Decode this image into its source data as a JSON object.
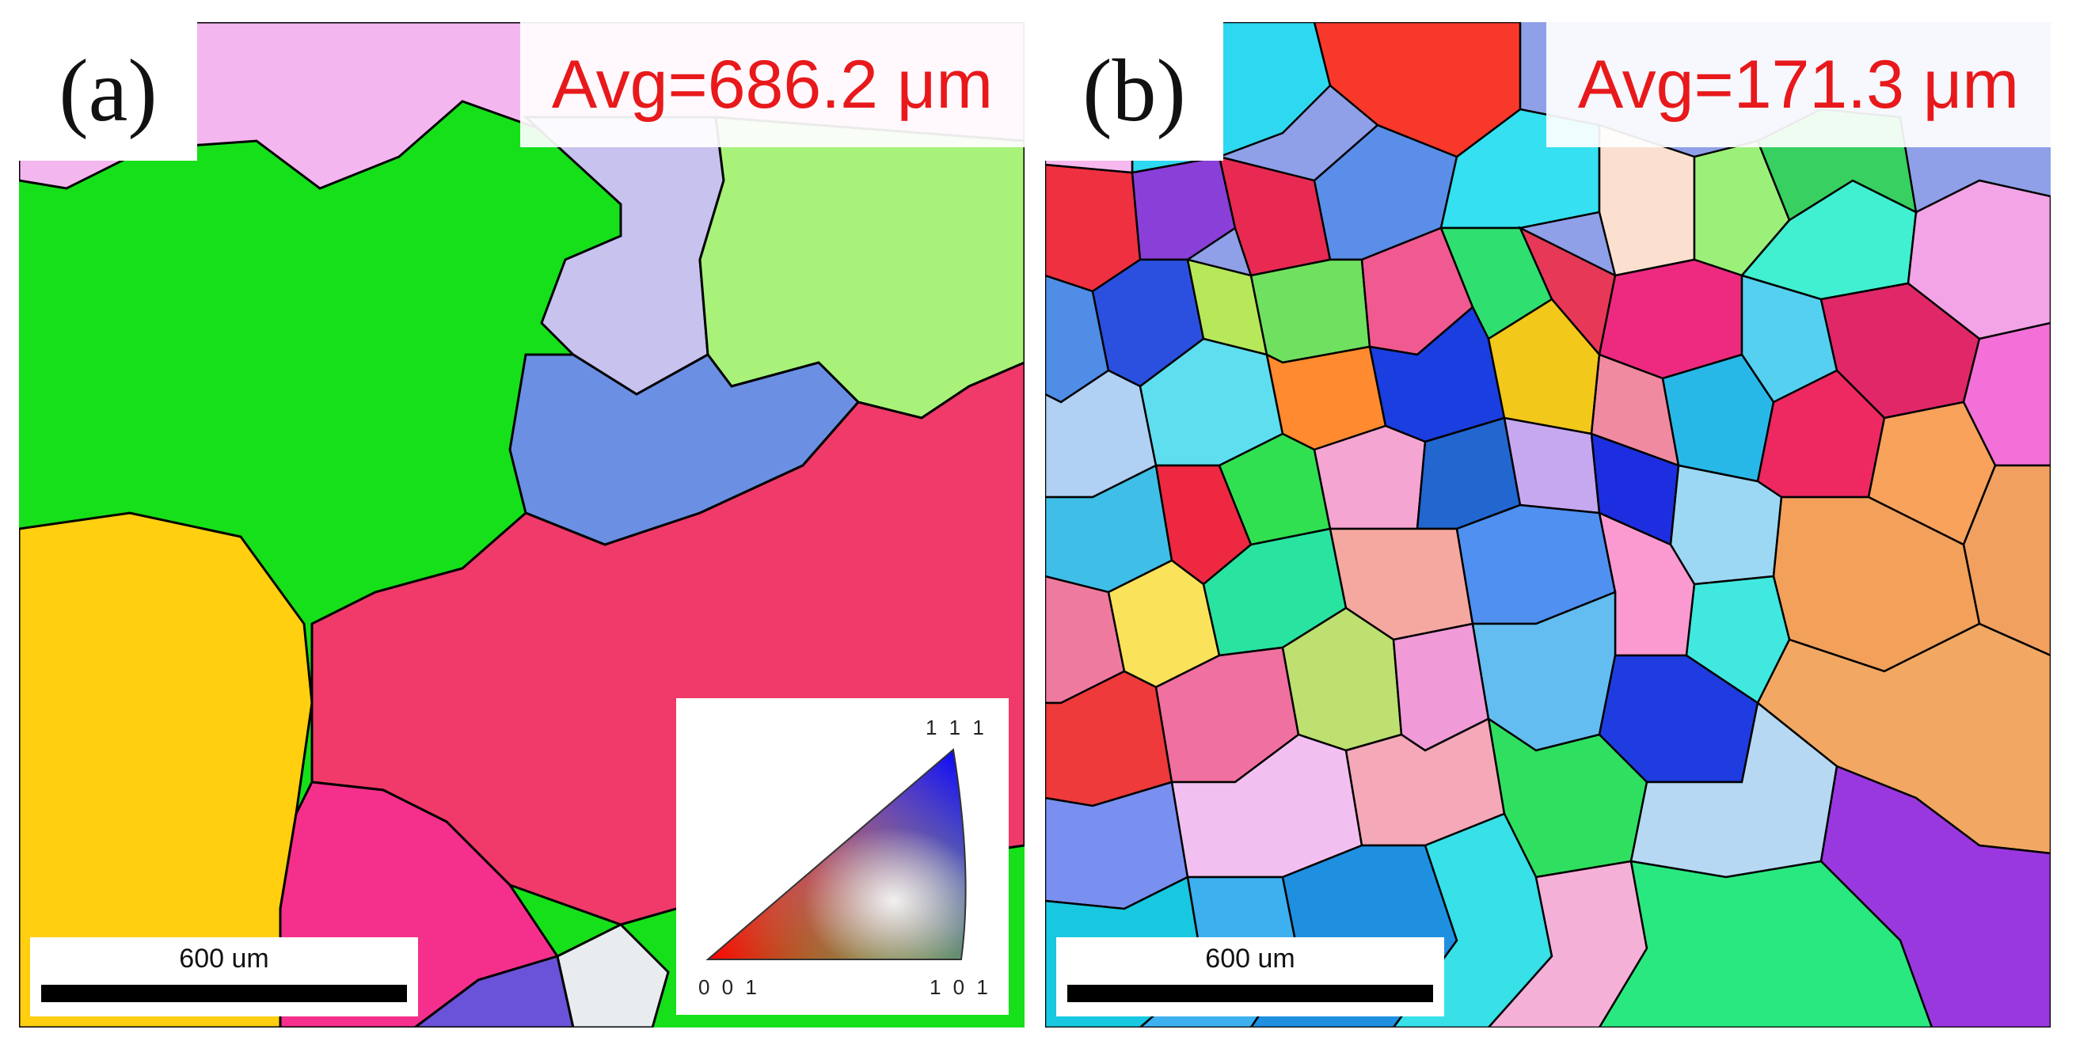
{
  "panel_a": {
    "label": "(a)",
    "avg_text": "Avg=686.2 μm",
    "scale_text": "600 um"
  },
  "panel_b": {
    "label": "(b)",
    "avg_text": "Avg=171.3 μm",
    "scale_text": "600 um"
  },
  "ipf_legend": {
    "corner_001": "0 0 1",
    "corner_101": "1 0 1",
    "corner_111": "1 1 1"
  },
  "colors": {
    "avg_text": "#e8191b",
    "grain_boundary": "#000000"
  }
}
